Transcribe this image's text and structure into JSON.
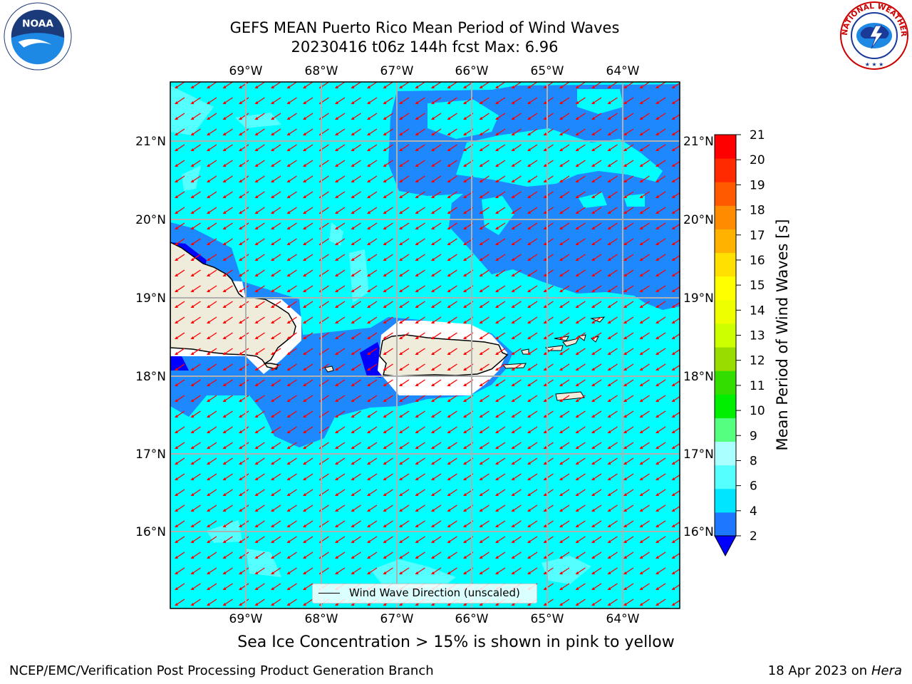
{
  "header": {
    "title_line1": "GEFS MEAN Puerto Rico Mean Period of Wind Waves",
    "title_line2": "20230416 t06z 144h fcst   Max: 6.96"
  },
  "logos": {
    "left": "NOAA",
    "right_text": "NATIONAL WEATHER SERVICE"
  },
  "map": {
    "lon_labels": [
      "69°W",
      "68°W",
      "67°W",
      "66°W",
      "65°W",
      "64°W"
    ],
    "lat_labels": [
      "21°N",
      "20°N",
      "19°N",
      "18°N",
      "17°N",
      "16°N"
    ],
    "legend_label": "Wind Wave Direction (unscaled)",
    "colors": {
      "ocean_4_6": "#00ffff",
      "ocean_6_8": "#55ffff",
      "ocean_2_4": "#1e90ff",
      "ocean_lt_2": "#0000ff",
      "land": "#efecdc",
      "arrows": "#ff0000",
      "grid": "#b0b0b0"
    }
  },
  "colorbar": {
    "label": "Mean Period of Wind Waves [s]",
    "ticks": [
      "2",
      "4",
      "6",
      "8",
      "9",
      "10",
      "11",
      "12",
      "13",
      "14",
      "15",
      "16",
      "17",
      "18",
      "19",
      "20",
      "21"
    ],
    "colors": [
      "#1e78ff",
      "#00e5ff",
      "#55ffff",
      "#aaffff",
      "#55ff80",
      "#00ee00",
      "#33dd00",
      "#99dd00",
      "#ccff00",
      "#eeff00",
      "#ffff00",
      "#ffe000",
      "#ffb300",
      "#ff8c00",
      "#ff5a00",
      "#ff2a00",
      "#ff0000"
    ]
  },
  "footer": {
    "caption": "Sea Ice Concentration > 15% is shown in pink to yellow",
    "left": "NCEP/EMC/Verification Post Processing Product Generation Branch",
    "right_date": "18 Apr 2023 on ",
    "right_host": "Hera"
  }
}
